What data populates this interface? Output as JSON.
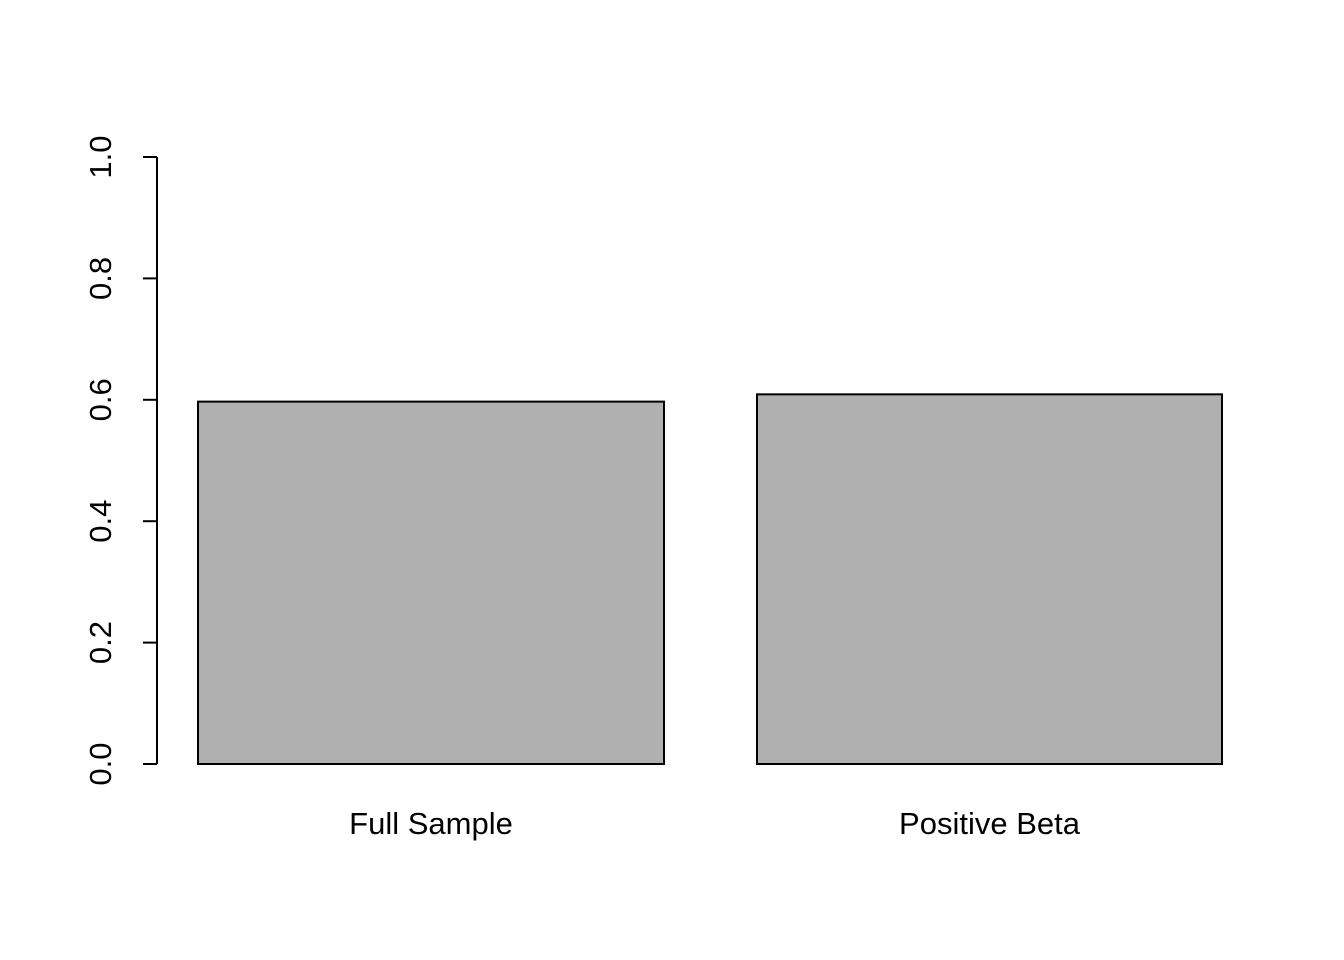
{
  "chart_data": {
    "type": "bar",
    "title": "",
    "xlabel": "",
    "ylabel": "",
    "categories": [
      "Full Sample",
      "Positive Beta"
    ],
    "values": [
      0.597,
      0.609
    ],
    "ylim": [
      0,
      1
    ],
    "yticks": [
      0,
      0.2,
      0.4,
      0.6,
      0.8,
      1
    ],
    "ytick_labels": [
      "0.0",
      "0.2",
      "0.4",
      "0.6",
      "0.8",
      "1.0"
    ],
    "bar_color": "#b0b0b0",
    "bar_border_color": "#000000",
    "grid": false,
    "legend": "none"
  }
}
